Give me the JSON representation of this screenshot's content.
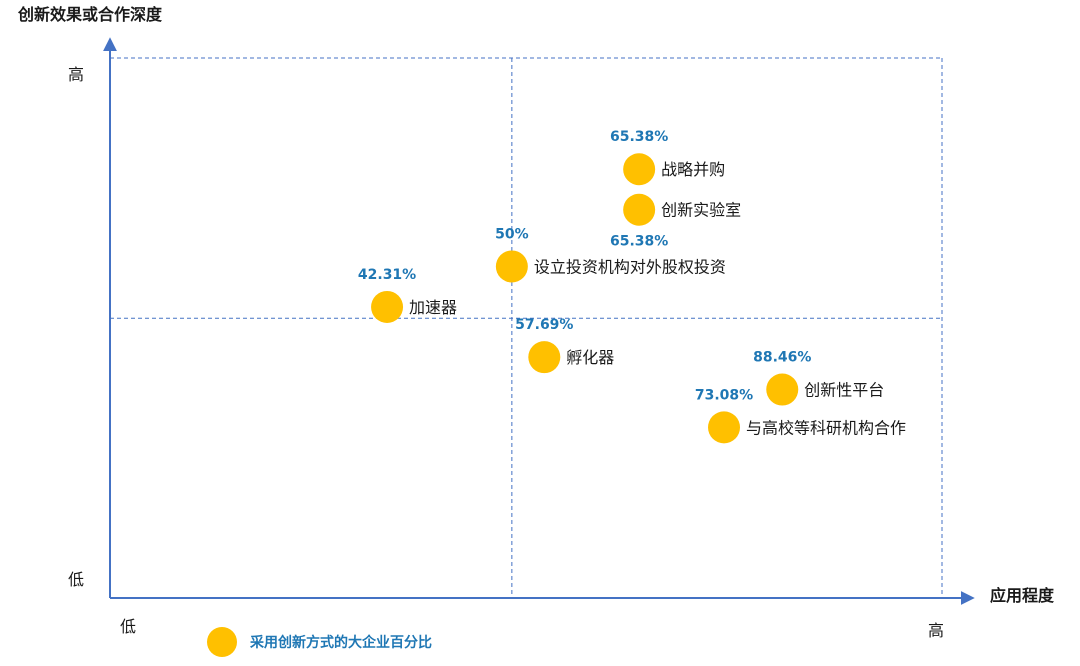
{
  "chart_data": {
    "type": "scatter",
    "title": "",
    "xlabel": "应用程度",
    "ylabel": "创新效果或合作深度",
    "x_ticks": {
      "low": "低",
      "high": "高"
    },
    "y_ticks": {
      "low": "低",
      "high": "高"
    },
    "xlim": [
      0,
      100
    ],
    "ylim": [
      0,
      100
    ],
    "quadrant_dividers": {
      "x": 48.3,
      "y": 51.8
    },
    "point_color": "#FFC000",
    "pct_color": "#1F77B4",
    "axis_color": "#4472C4",
    "points": [
      {
        "name": "战略并购",
        "pct": "65.38%",
        "x": 63.6,
        "y": 79.4,
        "pct_pos": "above"
      },
      {
        "name": "创新实验室",
        "pct": "65.38%",
        "x": 63.6,
        "y": 71.9,
        "pct_pos": "below"
      },
      {
        "name": "设立投资机构对外股权投资",
        "pct": "50%",
        "x": 48.3,
        "y": 61.4,
        "pct_pos": "above"
      },
      {
        "name": "加速器",
        "pct": "42.31%",
        "x": 33.3,
        "y": 53.9,
        "pct_pos": "above"
      },
      {
        "name": "孵化器",
        "pct": "57.69%",
        "x": 52.2,
        "y": 44.6,
        "pct_pos": "above"
      },
      {
        "name": "创新性平台",
        "pct": "88.46%",
        "x": 80.8,
        "y": 38.6,
        "pct_pos": "above"
      },
      {
        "name": "与高校等科研机构合作",
        "pct": "73.08%",
        "x": 73.8,
        "y": 31.6,
        "pct_pos": "above"
      }
    ],
    "legend": {
      "label": "采用创新方式的大企业百分比",
      "position": "bottom-left"
    }
  }
}
